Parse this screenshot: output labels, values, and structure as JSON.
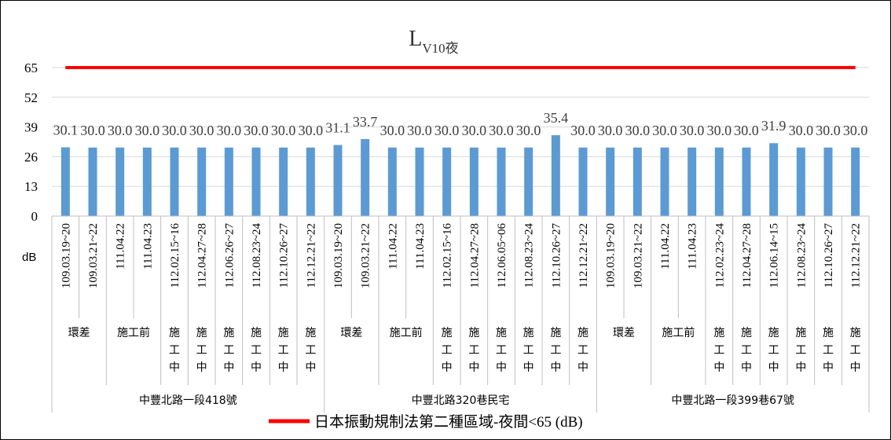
{
  "chart_data": {
    "type": "bar",
    "title": "L",
    "title_subscript": "V10夜",
    "ylabel": "dB",
    "ylim": [
      0,
      65
    ],
    "yticks": [
      0,
      13,
      26,
      39,
      52,
      65
    ],
    "grid": true,
    "categories": [
      "109.03.19~20",
      "109.03.21~22",
      "111.04.22",
      "111.04.23",
      "112.02.15~16",
      "112.04.27~28",
      "112.06.26~27",
      "112.08.23~24",
      "112.10.26~27",
      "112.12.21~22",
      "109.03.19~20",
      "109.03.21~22",
      "111.04.22",
      "111.04.23",
      "112.02.15~16",
      "112.04.27~28",
      "112.06.05~06",
      "112.08.23~24",
      "112.10.26~27",
      "112.12.21~22",
      "109.03.19~20",
      "109.03.21~22",
      "111.04.22",
      "111.04.23",
      "112.02.23~24",
      "112.04.27~28",
      "112.06.14~15",
      "112.08.23~24",
      "112.10.26~27",
      "112.12.21~22"
    ],
    "series": [
      {
        "color": "#5b9bd5",
        "values": [
          30.1,
          30.0,
          30.0,
          30.0,
          30.0,
          30.0,
          30.0,
          30.0,
          30.0,
          30.0,
          31.1,
          33.7,
          30.0,
          30.0,
          30.0,
          30.0,
          30.0,
          30.0,
          35.4,
          30.0,
          30.0,
          30.0,
          30.0,
          30.0,
          30.0,
          30.0,
          31.9,
          30.0,
          30.0,
          30.0
        ],
        "labels": [
          "30.1",
          "30.0",
          "30.0",
          "30.0",
          "30.0",
          "30.0",
          "30.0",
          "30.0",
          "30.0",
          "30.0",
          "31.1",
          "33.7",
          "30.0",
          "30.0",
          "30.0",
          "30.0",
          "30.0",
          "30.0",
          "35.4",
          "30.0",
          "30.0",
          "30.0",
          "30.0",
          "30.0",
          "30.0",
          "30.0",
          "31.9",
          "30.0",
          "30.0",
          "30.0"
        ]
      },
      {
        "name": "日本振動規制法第二種區域-夜間<65 (dB)",
        "type": "line",
        "color": "#ff0000",
        "values": [
          65,
          65,
          65,
          65,
          65,
          65,
          65,
          65,
          65,
          65,
          65,
          65,
          65,
          65,
          65,
          65,
          65,
          65,
          65,
          65,
          65,
          65,
          65,
          65,
          65,
          65,
          65,
          65,
          65,
          65
        ]
      }
    ],
    "phase_groups": [
      {
        "label": "環差",
        "start": 0,
        "end": 1,
        "vertical": false
      },
      {
        "label": "施工前",
        "start": 2,
        "end": 3,
        "vertical": false
      },
      {
        "label": "施工中",
        "start": 4,
        "end": 4,
        "vertical": true
      },
      {
        "label": "施工中",
        "start": 5,
        "end": 5,
        "vertical": true
      },
      {
        "label": "施工中",
        "start": 6,
        "end": 6,
        "vertical": true
      },
      {
        "label": "施工中",
        "start": 7,
        "end": 7,
        "vertical": true
      },
      {
        "label": "施工中",
        "start": 8,
        "end": 8,
        "vertical": true
      },
      {
        "label": "施工中",
        "start": 9,
        "end": 9,
        "vertical": true
      },
      {
        "label": "環差",
        "start": 10,
        "end": 11,
        "vertical": false
      },
      {
        "label": "施工前",
        "start": 12,
        "end": 13,
        "vertical": false
      },
      {
        "label": "施工中",
        "start": 14,
        "end": 14,
        "vertical": true
      },
      {
        "label": "施工中",
        "start": 15,
        "end": 15,
        "vertical": true
      },
      {
        "label": "施工中",
        "start": 16,
        "end": 16,
        "vertical": true
      },
      {
        "label": "施工中",
        "start": 17,
        "end": 17,
        "vertical": true
      },
      {
        "label": "施工中",
        "start": 18,
        "end": 18,
        "vertical": true
      },
      {
        "label": "施工中",
        "start": 19,
        "end": 19,
        "vertical": true
      },
      {
        "label": "環差",
        "start": 20,
        "end": 21,
        "vertical": false
      },
      {
        "label": "施工前",
        "start": 22,
        "end": 23,
        "vertical": false
      },
      {
        "label": "施工中",
        "start": 24,
        "end": 24,
        "vertical": true
      },
      {
        "label": "施工中",
        "start": 25,
        "end": 25,
        "vertical": true
      },
      {
        "label": "施工中",
        "start": 26,
        "end": 26,
        "vertical": true
      },
      {
        "label": "施工中",
        "start": 27,
        "end": 27,
        "vertical": true
      },
      {
        "label": "施工中",
        "start": 28,
        "end": 28,
        "vertical": true
      },
      {
        "label": "施工中",
        "start": 29,
        "end": 29,
        "vertical": true
      }
    ],
    "site_groups": [
      {
        "label": "中豐北路一段418號",
        "start": 0,
        "end": 9
      },
      {
        "label": "中豐北路320巷民宅",
        "start": 10,
        "end": 19
      },
      {
        "label": "中豐北路一段399巷67號",
        "start": 20,
        "end": 29
      }
    ],
    "legend_position": "bottom"
  }
}
